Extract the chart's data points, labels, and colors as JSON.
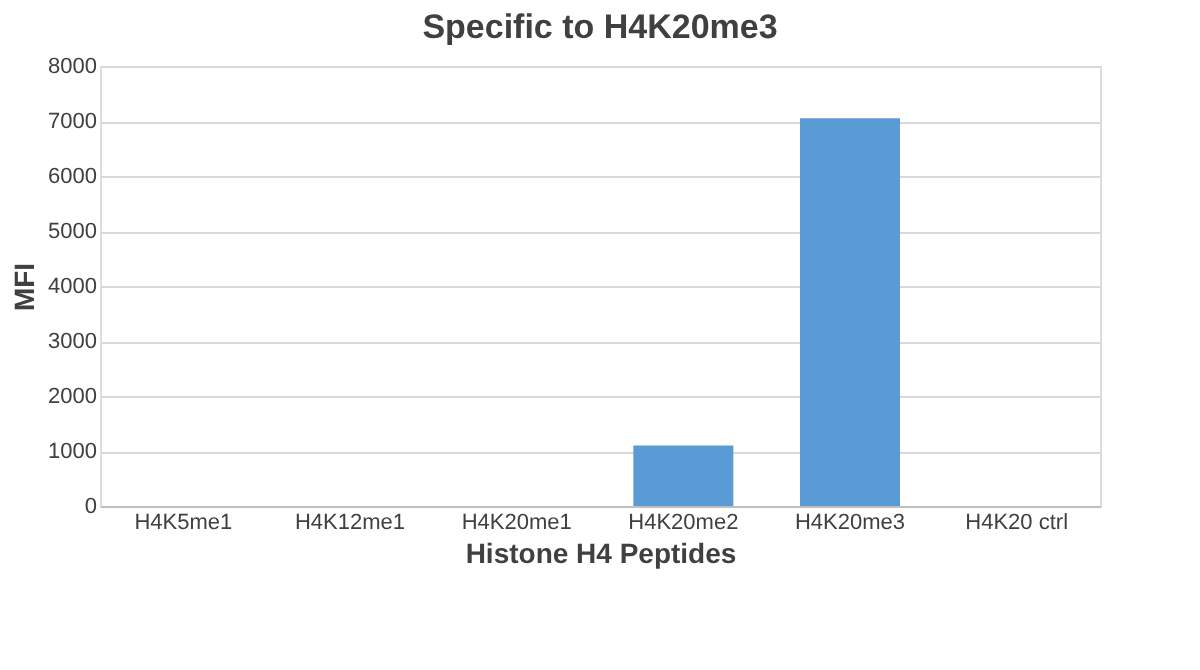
{
  "chart_data": {
    "type": "bar",
    "title": "Specific to H4K20me3",
    "xlabel": "Histone H4 Peptides",
    "ylabel": "MFI",
    "categories": [
      "H4K5me1",
      "H4K12me1",
      "H4K20me1",
      "H4K20me2",
      "H4K20me3",
      "H4K20 ctrl"
    ],
    "values": [
      0,
      0,
      0,
      1100,
      7050,
      0
    ],
    "color": "#5b9bd5",
    "ylim": [
      0,
      8000
    ],
    "yticks": [
      0,
      1000,
      2000,
      3000,
      4000,
      5000,
      6000,
      7000,
      8000
    ],
    "grid": "y"
  }
}
